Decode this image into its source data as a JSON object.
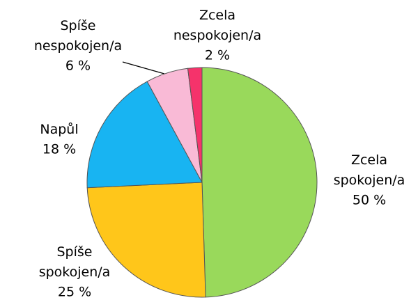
{
  "chart_data": {
    "type": "pie",
    "categories": [
      "Zcela spokojen/a",
      "Spíše spokojen/a",
      "Napůl",
      "Spíše nespokojen/a",
      "Zcela nespokojen/a"
    ],
    "values": [
      50,
      25,
      18,
      6,
      2
    ],
    "value_labels": [
      "50 %",
      "25 %",
      "18 %",
      "6 %",
      "2 %"
    ],
    "colors": [
      "#99d95b",
      "#ffc61a",
      "#18b4f2",
      "#f9bad6",
      "#f5336b"
    ]
  }
}
